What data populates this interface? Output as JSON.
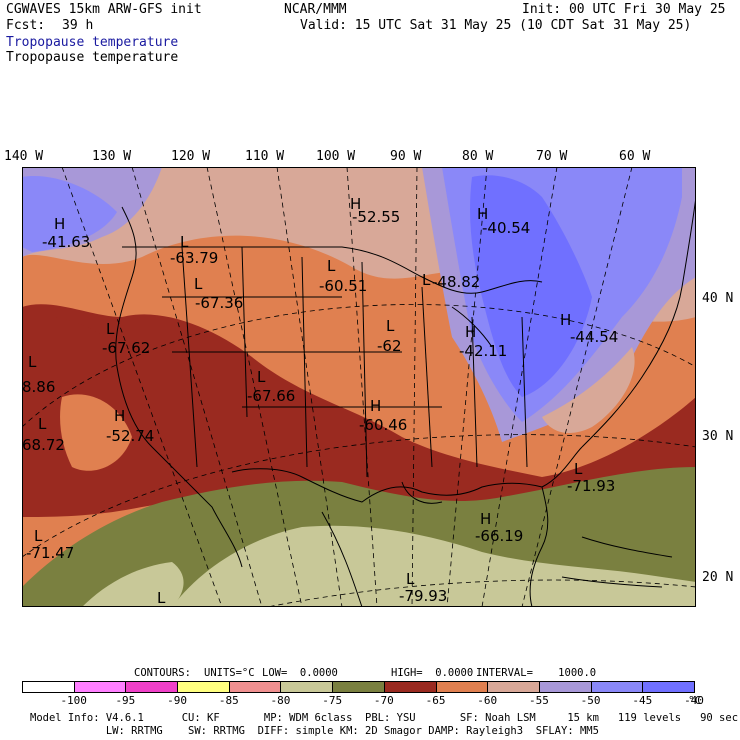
{
  "header": {
    "model": "CGWAVES 15km ARW-GFS init",
    "org": "NCAR/MMM",
    "init": "Init: 00 UTC Fri 30 May 25",
    "fcst_label": "Fcst:",
    "fcst_value": "39 h",
    "valid": "Valid: 15 UTC Sat 31 May 25 (10 CDT Sat 31 May 25)",
    "field_title_1": "Tropopause temperature",
    "field_title_2": "Tropopause temperature"
  },
  "axes": {
    "longitudes": [
      "140 W",
      "130 W",
      "120 W",
      "110 W",
      "100 W",
      "90 W",
      "80 W",
      "70 W",
      "60 W"
    ],
    "latitudes": [
      "40 N",
      "30 N",
      "20 N"
    ]
  },
  "map_labels": [
    {
      "type": "H",
      "value": "-41.63"
    },
    {
      "type": "L",
      "value": "-63.79"
    },
    {
      "type": "L",
      "value": "-67.36"
    },
    {
      "type": "L",
      "value": "-67.62"
    },
    {
      "type": "L",
      "value": "-67.66"
    },
    {
      "type": "H",
      "value": "-52.74"
    },
    {
      "type": "L",
      "value": "68.72"
    },
    {
      "type": "L",
      "value": "8.86"
    },
    {
      "type": "L",
      "value": "-71.47"
    },
    {
      "type": "H",
      "value": "-52.55"
    },
    {
      "type": "L",
      "value": "-60.51"
    },
    {
      "type": "L",
      "value": "-62"
    },
    {
      "type": "H",
      "value": "-60.46"
    },
    {
      "type": "H",
      "value": "-40.54"
    },
    {
      "type": "L",
      "value": "-48.82"
    },
    {
      "type": "H",
      "value": "-42.11"
    },
    {
      "type": "H",
      "value": "-44.54"
    },
    {
      "type": "L",
      "value": "-71.93"
    },
    {
      "type": "H",
      "value": "-66.19"
    },
    {
      "type": "L",
      "value": "-79.93"
    },
    {
      "type": "L",
      "value": ""
    }
  ],
  "contours": {
    "label": "CONTOURS:",
    "units": "UNITS=°C",
    "low": "LOW=  0.0000",
    "high": "HIGH=  0.0000",
    "interval": "INTERVAL=    1000.0"
  },
  "colorbar": {
    "colors": [
      "#ffffff",
      "#ff7fff",
      "#f040c8",
      "#ffff80",
      "#f09090",
      "#c8c898",
      "#7a8040",
      "#9a2a20",
      "#e08050",
      "#d8a898",
      "#a898d8",
      "#8a88f8",
      "#7070ff"
    ],
    "labels": [
      "-100",
      "-95",
      "-90",
      "-85",
      "-80",
      "-75",
      "-70",
      "-65",
      "-60",
      "-55",
      "-50",
      "-45",
      "-40"
    ],
    "unit": "°C"
  },
  "footer": {
    "line1": "Model Info: V4.6.1      CU: KF       MP: WDM 6class  PBL: YSU       SF: Noah LSM     15 km   119 levels   90 sec",
    "line2": "            LW: RRTMG    SW: RRTMG  DIFF: simple KM: 2D Smagor DAMP: Rayleigh3  SFLAY: MM5"
  }
}
